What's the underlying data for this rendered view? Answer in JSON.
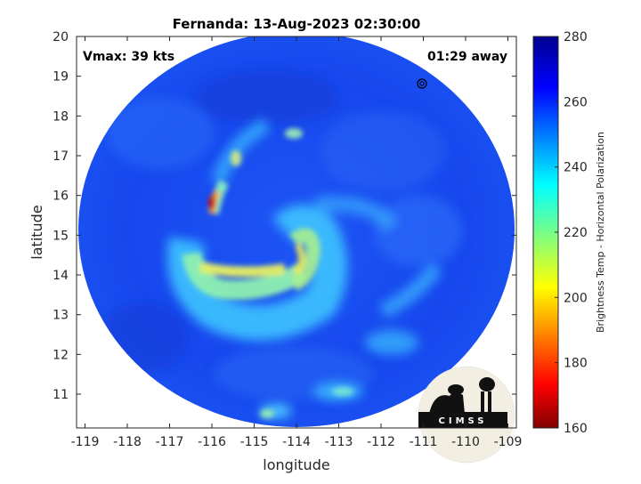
{
  "title": "Fernanda: 13-Aug-2023 02:30:00",
  "vmax_label": "Vmax: 39 kts",
  "time_away": "01:29 away",
  "x_axis": {
    "label": "longitude",
    "range": [
      -119.2,
      -108.8
    ],
    "ticks": [
      -119,
      -118,
      -117,
      -116,
      -115,
      -114,
      -113,
      -112,
      -111,
      -110,
      -109
    ],
    "tick_labels": [
      "-119",
      "-118",
      "-117",
      "-116",
      "-115",
      "-114",
      "-113",
      "-112",
      "-111",
      "-110",
      "-109"
    ]
  },
  "y_axis": {
    "label": "latitude",
    "range": [
      10.15,
      20
    ],
    "ticks": [
      11,
      12,
      13,
      14,
      15,
      16,
      17,
      18,
      19,
      20
    ],
    "tick_labels": [
      "11",
      "12",
      "13",
      "14",
      "15",
      "16",
      "17",
      "18",
      "19",
      "20"
    ]
  },
  "colorbar": {
    "label": "Brightness Temp - Horizontal Polarization",
    "range": [
      160,
      280
    ],
    "ticks": [
      160,
      180,
      200,
      220,
      240,
      260,
      280
    ],
    "tick_labels": [
      "160",
      "180",
      "200",
      "220",
      "240",
      "260",
      "280"
    ],
    "colormap": "jet"
  },
  "logo": {
    "text": "CIMSS"
  },
  "colors": {
    "background_scene": "#1a4cf0",
    "deep_blue": "#0f3fdc",
    "cyan": "#3fc8ff",
    "light_cyan": "#7fe0ff",
    "green": "#8cf0a0",
    "yellow": "#f0f060",
    "orange": "#ff9a20",
    "red": "#c81818"
  }
}
